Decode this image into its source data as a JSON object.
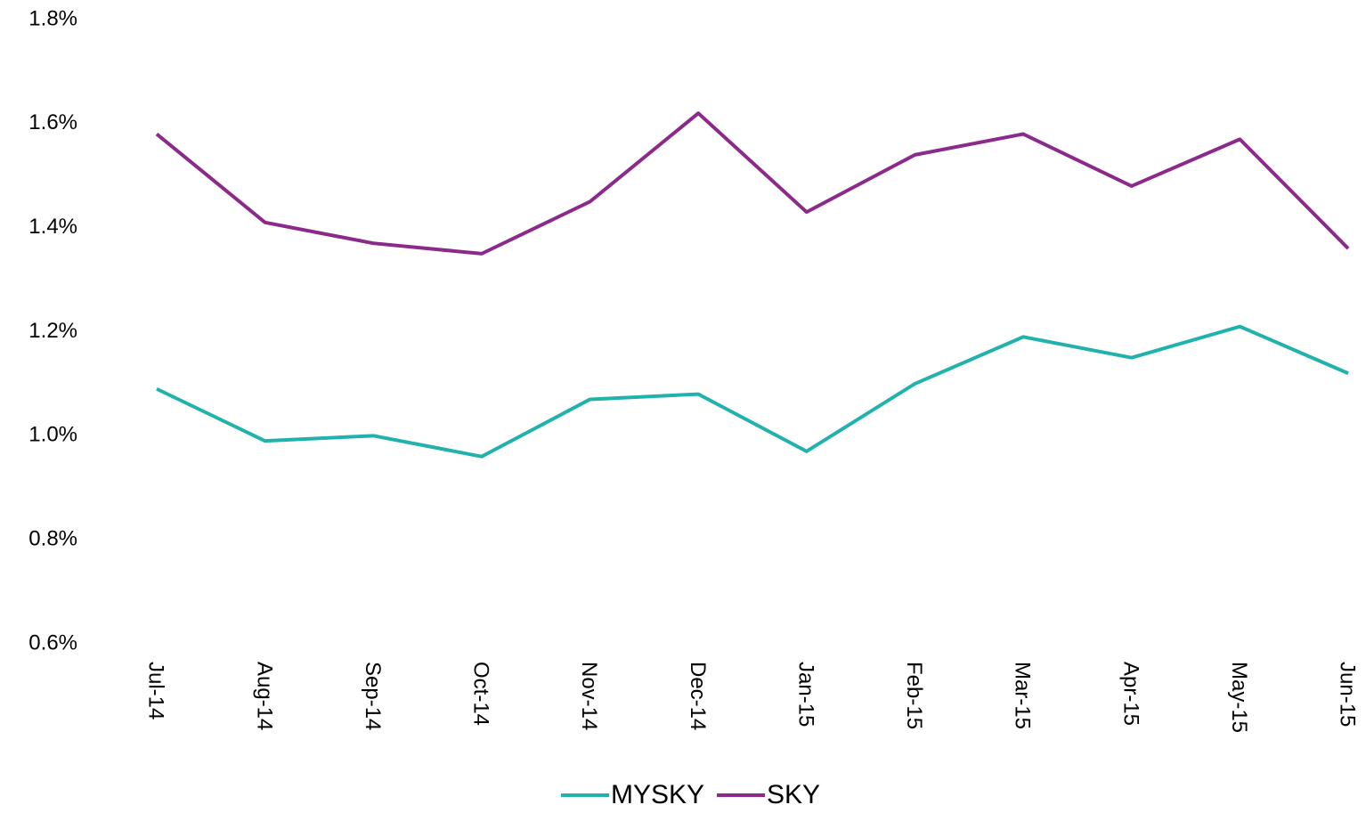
{
  "chart_data": {
    "type": "line",
    "categories": [
      "Jul-14",
      "Aug-14",
      "Sep-14",
      "Oct-14",
      "Nov-14",
      "Dec-14",
      "Jan-15",
      "Feb-15",
      "Mar-15",
      "Apr-15",
      "May-15",
      "Jun-15"
    ],
    "series": [
      {
        "name": "MYSKY",
        "color": "#22b2ad",
        "values": [
          1.09,
          0.99,
          1.0,
          0.96,
          1.07,
          1.08,
          0.97,
          1.1,
          1.19,
          1.15,
          1.21,
          1.12
        ]
      },
      {
        "name": "SKY",
        "color": "#8b2a8b",
        "values": [
          1.58,
          1.41,
          1.37,
          1.35,
          1.45,
          1.62,
          1.43,
          1.54,
          1.58,
          1.48,
          1.57,
          1.36
        ]
      }
    ],
    "ylim": [
      0.6,
      1.8
    ],
    "yticks": [
      {
        "value": 0.6,
        "label": "0.6%"
      },
      {
        "value": 0.8,
        "label": "0.8%"
      },
      {
        "value": 1.0,
        "label": "1.0%"
      },
      {
        "value": 1.2,
        "label": "1.2%"
      },
      {
        "value": 1.4,
        "label": "1.4%"
      },
      {
        "value": 1.6,
        "label": "1.6%"
      },
      {
        "value": 1.8,
        "label": "1.8%"
      }
    ],
    "grid": false,
    "legend": "bottom"
  }
}
